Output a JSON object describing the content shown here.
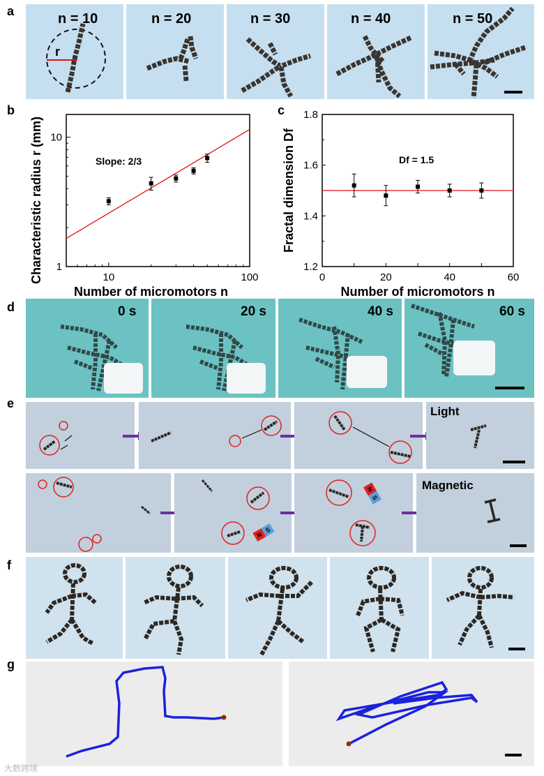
{
  "panels": {
    "a": "a",
    "b": "b",
    "c": "c",
    "d": "d",
    "e": "e",
    "f": "f",
    "g": "g"
  },
  "a": {
    "labels": [
      "n = 10",
      "n = 20",
      "n = 30",
      "n = 40",
      "n = 50"
    ],
    "radius_label": "r"
  },
  "chart_data": [
    {
      "type": "scatter",
      "panel": "b",
      "xscale": "log",
      "yscale": "log",
      "xlim": [
        5,
        100
      ],
      "ylim": [
        1,
        15
      ],
      "xticks": [
        10,
        100
      ],
      "yticks": [
        1,
        10
      ],
      "xlabel": "Number of micromotors n",
      "ylabel": "Characteristic radius r (mm)",
      "annotation": "Slope: 2/3",
      "points": [
        {
          "x": 10,
          "y": 3.2,
          "err": 0.2
        },
        {
          "x": 20,
          "y": 4.4,
          "err": 0.5
        },
        {
          "x": 30,
          "y": 4.8,
          "err": 0.3
        },
        {
          "x": 40,
          "y": 5.5,
          "err": 0.3
        },
        {
          "x": 50,
          "y": 6.9,
          "err": 0.5
        }
      ],
      "fit": {
        "x": [
          5,
          100
        ],
        "y": [
          1.65,
          11.5
        ]
      }
    },
    {
      "type": "scatter",
      "panel": "c",
      "xlim": [
        0,
        60
      ],
      "ylim": [
        1.2,
        1.8
      ],
      "xticks": [
        0,
        10,
        20,
        30,
        40,
        50,
        60
      ],
      "xtick_labels": [
        "0",
        "",
        "20",
        "",
        "40",
        "",
        "60"
      ],
      "yticks": [
        1.2,
        1.4,
        1.6,
        1.8
      ],
      "ytick_labels": [
        "1.2",
        "1.4",
        "1.6",
        "1.8"
      ],
      "xlabel": "Number of micromotors n",
      "ylabel": "Fractal dimension Df",
      "annotation": "Df = 1.5",
      "points": [
        {
          "x": 10,
          "y": 1.52,
          "err": 0.045
        },
        {
          "x": 20,
          "y": 1.48,
          "err": 0.04
        },
        {
          "x": 30,
          "y": 1.515,
          "err": 0.025
        },
        {
          "x": 40,
          "y": 1.5,
          "err": 0.025
        },
        {
          "x": 50,
          "y": 1.5,
          "err": 0.03
        }
      ],
      "hline": 1.5
    }
  ],
  "d": {
    "times": [
      "0 s",
      "20 s",
      "40 s",
      "60 s"
    ]
  },
  "e": {
    "light_label": "Light",
    "magnetic_label": "Magnetic",
    "magnet_n": "N",
    "magnet_s": "S"
  },
  "watermark": "大数跨境",
  "colors": {
    "tileA": "#c6dff0",
    "tileD": "#6cc2c2",
    "tileE": "#c2cfdc",
    "tileF": "#cfe2ee",
    "fit": "#e01010",
    "path": "#1a22dd",
    "arrow": "#6b2fa0",
    "circle": "#e02020",
    "magN": "#e02020",
    "magS": "#5a9fd8"
  }
}
